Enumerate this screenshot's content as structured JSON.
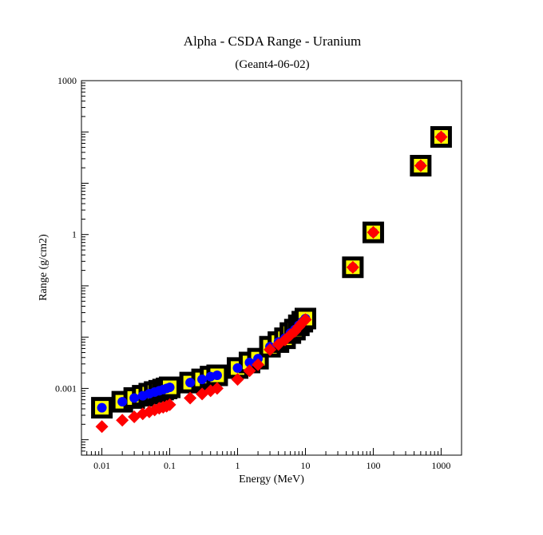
{
  "chart_data": {
    "type": "scatter",
    "title": "Alpha - CSDA Range - Uranium",
    "subtitle": "(Geant4-06-02)",
    "xlabel": "Energy (MeV)",
    "ylabel": "Range (g/cm2)",
    "x_scale": "log",
    "y_scale": "log",
    "xlim": [
      0.005,
      2000
    ],
    "ylim": [
      5e-05,
      1000
    ],
    "grid": false,
    "legend": "none",
    "x_ticks": [
      {
        "value": 0.01,
        "label": "0.01"
      },
      {
        "value": 0.1,
        "label": "0.1"
      },
      {
        "value": 1,
        "label": "1"
      },
      {
        "value": 10,
        "label": "10"
      },
      {
        "value": 100,
        "label": "100"
      },
      {
        "value": 1000,
        "label": "1000"
      }
    ],
    "y_ticks": [
      {
        "value": 0.001,
        "label": "0.001"
      },
      {
        "value": 1,
        "label": "1"
      },
      {
        "value": 1000,
        "label": "1000"
      }
    ],
    "series": [
      {
        "marker": "square-outline",
        "colors": {
          "edge": "#000000",
          "fill": "#ffff00"
        },
        "points": [
          [
            0.01,
            0.00042
          ],
          [
            0.02,
            0.00055
          ],
          [
            0.03,
            0.00065
          ],
          [
            0.04,
            0.00072
          ],
          [
            0.05,
            0.00079
          ],
          [
            0.06,
            0.00085
          ],
          [
            0.07,
            0.0009
          ],
          [
            0.08,
            0.00095
          ],
          [
            0.09,
            0.001
          ],
          [
            0.1,
            0.00105
          ],
          [
            0.2,
            0.0013
          ],
          [
            0.3,
            0.0015
          ],
          [
            0.4,
            0.0017
          ],
          [
            0.5,
            0.0018
          ],
          [
            1,
            0.0025
          ],
          [
            1.5,
            0.0032
          ],
          [
            2,
            0.0038
          ],
          [
            3,
            0.0065
          ],
          [
            4,
            0.008
          ],
          [
            5,
            0.0095
          ],
          [
            6,
            0.012
          ],
          [
            7,
            0.014
          ],
          [
            8,
            0.017
          ],
          [
            9,
            0.02
          ],
          [
            10,
            0.023
          ],
          [
            50,
            0.23
          ],
          [
            100,
            1.1
          ],
          [
            500,
            22
          ],
          [
            1000,
            80
          ]
        ]
      },
      {
        "marker": "circle",
        "colors": {
          "fill": "#0000ff"
        },
        "points": [
          [
            0.01,
            0.00042
          ],
          [
            0.02,
            0.00055
          ],
          [
            0.03,
            0.00065
          ],
          [
            0.04,
            0.00072
          ],
          [
            0.05,
            0.00079
          ],
          [
            0.06,
            0.00085
          ],
          [
            0.07,
            0.0009
          ],
          [
            0.08,
            0.00095
          ],
          [
            0.09,
            0.001
          ],
          [
            0.1,
            0.00105
          ],
          [
            0.2,
            0.0013
          ],
          [
            0.3,
            0.0015
          ],
          [
            0.4,
            0.0017
          ],
          [
            0.5,
            0.0018
          ],
          [
            1,
            0.0025
          ],
          [
            1.5,
            0.0032
          ],
          [
            2,
            0.0038
          ],
          [
            3,
            0.0065
          ],
          [
            4,
            0.008
          ],
          [
            5,
            0.0095
          ],
          [
            6,
            0.012
          ],
          [
            7,
            0.014
          ],
          [
            8,
            0.017
          ],
          [
            9,
            0.02
          ],
          [
            10,
            0.023
          ],
          [
            50,
            0.23
          ],
          [
            100,
            1.1
          ],
          [
            500,
            22
          ],
          [
            1000,
            80
          ]
        ]
      },
      {
        "marker": "diamond",
        "colors": {
          "fill": "#ff0000"
        },
        "points": [
          [
            0.01,
            0.00018
          ],
          [
            0.02,
            0.00024
          ],
          [
            0.03,
            0.00028
          ],
          [
            0.04,
            0.00032
          ],
          [
            0.05,
            0.00035
          ],
          [
            0.06,
            0.00038
          ],
          [
            0.07,
            0.00041
          ],
          [
            0.08,
            0.00043
          ],
          [
            0.09,
            0.00045
          ],
          [
            0.1,
            0.00048
          ],
          [
            0.2,
            0.00065
          ],
          [
            0.3,
            0.00078
          ],
          [
            0.4,
            0.0009
          ],
          [
            0.5,
            0.001
          ],
          [
            1,
            0.0015
          ],
          [
            1.5,
            0.0022
          ],
          [
            2,
            0.0029
          ],
          [
            3,
            0.0057
          ],
          [
            4,
            0.0072
          ],
          [
            5,
            0.0088
          ],
          [
            6,
            0.011
          ],
          [
            7,
            0.013
          ],
          [
            8,
            0.016
          ],
          [
            9,
            0.019
          ],
          [
            10,
            0.022
          ],
          [
            50,
            0.23
          ],
          [
            100,
            1.1
          ],
          [
            500,
            22
          ],
          [
            1000,
            80
          ]
        ]
      }
    ]
  }
}
